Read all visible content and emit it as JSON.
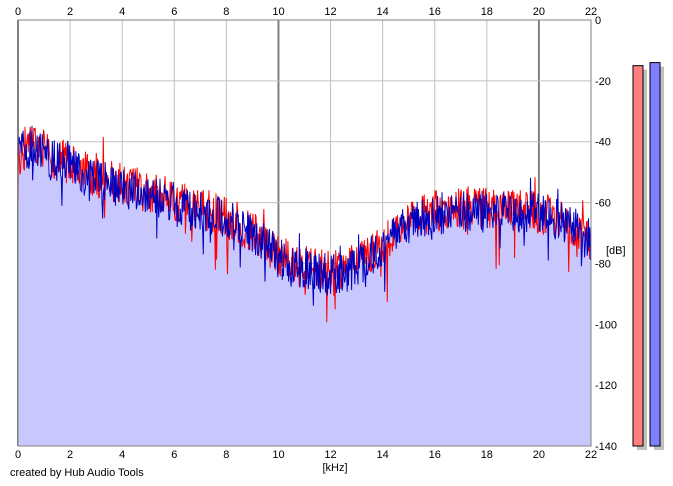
{
  "chart_data": {
    "type": "line",
    "title": "",
    "xlabel": "[kHz]",
    "ylabel": "[dB]",
    "xlim": [
      0,
      22
    ],
    "ylim": [
      -140,
      0
    ],
    "x_ticks": [
      "0",
      "2",
      "4",
      "6",
      "8",
      "10",
      "12",
      "14",
      "16",
      "18",
      "20",
      "22"
    ],
    "y_ticks": [
      "0",
      "-20",
      "-40",
      "-60",
      "-80",
      "-100",
      "-120",
      "-140"
    ],
    "grid": true,
    "legend": "none",
    "series": [
      {
        "color": "#ff0000",
        "x": [
          0,
          0.5,
          1,
          1.5,
          2,
          2.5,
          3,
          3.5,
          4,
          4.5,
          5,
          5.5,
          6,
          6.5,
          7,
          7.5,
          8,
          8.5,
          9,
          9.5,
          10,
          10.5,
          11,
          11.5,
          12,
          12.5,
          13,
          13.5,
          14,
          14.5,
          15,
          15.5,
          16,
          16.5,
          17,
          17.5,
          18,
          18.5,
          19,
          19.5,
          20,
          20.5,
          21,
          21.5,
          22
        ],
        "y": [
          -45,
          -40,
          -43,
          -46,
          -47,
          -50,
          -51,
          -53,
          -54,
          -55,
          -57,
          -58,
          -59,
          -61,
          -62,
          -63,
          -65,
          -67,
          -70,
          -73,
          -77,
          -80,
          -81,
          -82,
          -83,
          -82,
          -80,
          -77,
          -73,
          -69,
          -66,
          -64,
          -63,
          -62,
          -62,
          -62,
          -62,
          -61,
          -62,
          -62,
          -63,
          -64,
          -66,
          -68,
          -72
        ]
      },
      {
        "color": "#0000c0",
        "x": [
          0,
          0.5,
          1,
          1.5,
          2,
          2.5,
          3,
          3.5,
          4,
          4.5,
          5,
          5.5,
          6,
          6.5,
          7,
          7.5,
          8,
          8.5,
          9,
          9.5,
          10,
          10.5,
          11,
          11.5,
          12,
          12.5,
          13,
          13.5,
          14,
          14.5,
          15,
          15.5,
          16,
          16.5,
          17,
          17.5,
          18,
          18.5,
          19,
          19.5,
          20,
          20.5,
          21,
          21.5,
          22
        ],
        "y": [
          -44,
          -41,
          -44,
          -47,
          -48,
          -51,
          -52,
          -54,
          -55,
          -56,
          -58,
          -59,
          -60,
          -62,
          -63,
          -64,
          -66,
          -68,
          -71,
          -74,
          -78,
          -81,
          -82,
          -83,
          -84,
          -83,
          -81,
          -78,
          -74,
          -70,
          -67,
          -65,
          -64,
          -63,
          -63,
          -63,
          -63,
          -62,
          -63,
          -63,
          -64,
          -65,
          -67,
          -69,
          -74
        ]
      }
    ],
    "fill_color": "#c8c8ff",
    "level_meters": [
      {
        "color": "#ff7f7f",
        "level_db": -15
      },
      {
        "color": "#7f7fff",
        "level_db": -14
      }
    ]
  },
  "footer": {
    "credit": "created by Hub Audio Tools"
  }
}
